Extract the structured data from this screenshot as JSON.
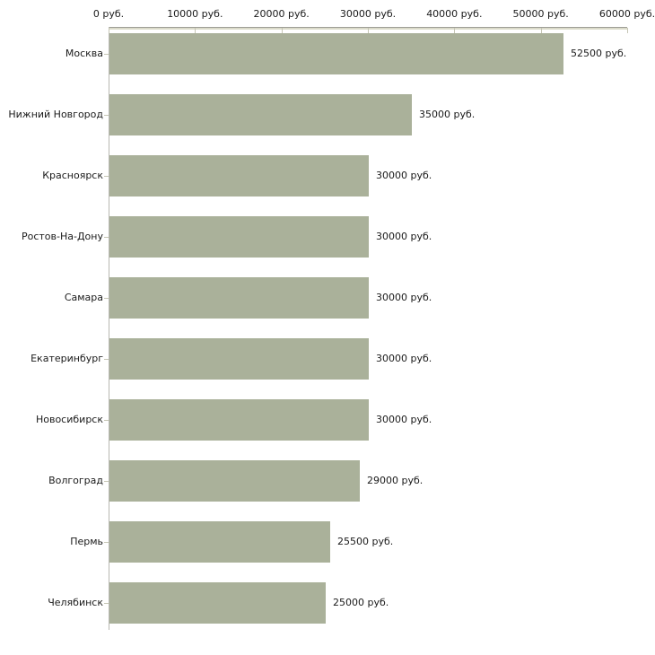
{
  "chart_data": {
    "type": "bar",
    "orientation": "horizontal",
    "title": "",
    "categories": [
      "Москва",
      "Нижний Новгород",
      "Красноярск",
      "Ростов-На-Дону",
      "Самара",
      "Екатеринбург",
      "Новосибирск",
      "Волгоград",
      "Пермь",
      "Челябинск"
    ],
    "values": [
      52500,
      35000,
      30000,
      30000,
      30000,
      30000,
      30000,
      29000,
      25500,
      25000
    ],
    "value_labels": [
      "52500 руб.",
      "35000 руб.",
      "30000 руб.",
      "30000 руб.",
      "30000 руб.",
      "30000 руб.",
      "30000 руб.",
      "29000 руб.",
      "25500 руб.",
      "25000 руб."
    ],
    "x_axis": {
      "position": "top",
      "unit": "руб.",
      "min": 0,
      "max": 60000,
      "tick_values": [
        0,
        10000,
        20000,
        30000,
        40000,
        50000,
        60000
      ],
      "tick_labels": [
        "0 руб.",
        "10000 руб.",
        "20000 руб.",
        "30000 руб.",
        "40000 руб.",
        "50000 руб.",
        "60000 руб."
      ]
    },
    "grid": "off",
    "legend": "none",
    "colors": {
      "bar": "#aab19a",
      "axis_tick": "#c6c6b5",
      "category_tick": "#c6c6b5",
      "text": "#1a1a1a",
      "background": "#ffffff"
    }
  }
}
